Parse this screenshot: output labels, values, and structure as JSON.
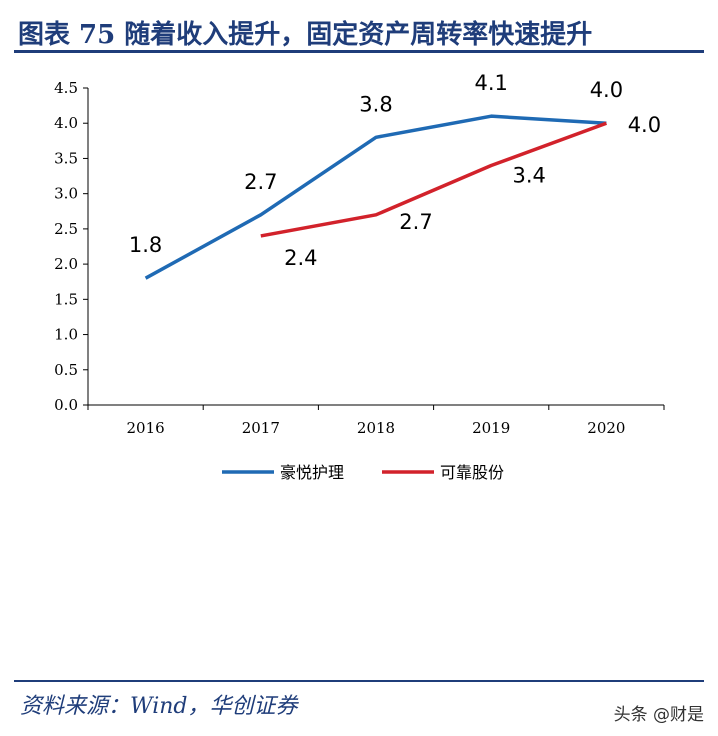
{
  "header": {
    "title": "图表 75   随着收入提升，固定资产周转率快速提升"
  },
  "footer": {
    "source": "资料来源：Wind，华创证券",
    "watermark": "头条 @财是"
  },
  "colors": {
    "title": "#1f3d7a",
    "series_blue": "#1f6ab4",
    "series_red": "#d2222b"
  },
  "chart_data": {
    "type": "line",
    "title": "",
    "xlabel": "",
    "ylabel": "",
    "categories": [
      "2016",
      "2017",
      "2018",
      "2019",
      "2020"
    ],
    "ylim": [
      0,
      4.5
    ],
    "yticks": [
      "0.0",
      "0.5",
      "1.0",
      "1.5",
      "2.0",
      "2.5",
      "3.0",
      "3.5",
      "4.0",
      "4.5"
    ],
    "grid": false,
    "legend_position": "bottom",
    "series": [
      {
        "name": "豪悦护理",
        "color": "#1f6ab4",
        "values": [
          1.8,
          2.7,
          3.8,
          4.1,
          4.0
        ],
        "labels": [
          "1.8",
          "2.7",
          "3.8",
          "4.1",
          "4.0"
        ]
      },
      {
        "name": "可靠股份",
        "color": "#d2222b",
        "values": [
          null,
          2.4,
          2.7,
          3.4,
          4.0
        ],
        "labels": [
          null,
          "2.4",
          "2.7",
          "3.4",
          "4.0"
        ]
      }
    ]
  }
}
